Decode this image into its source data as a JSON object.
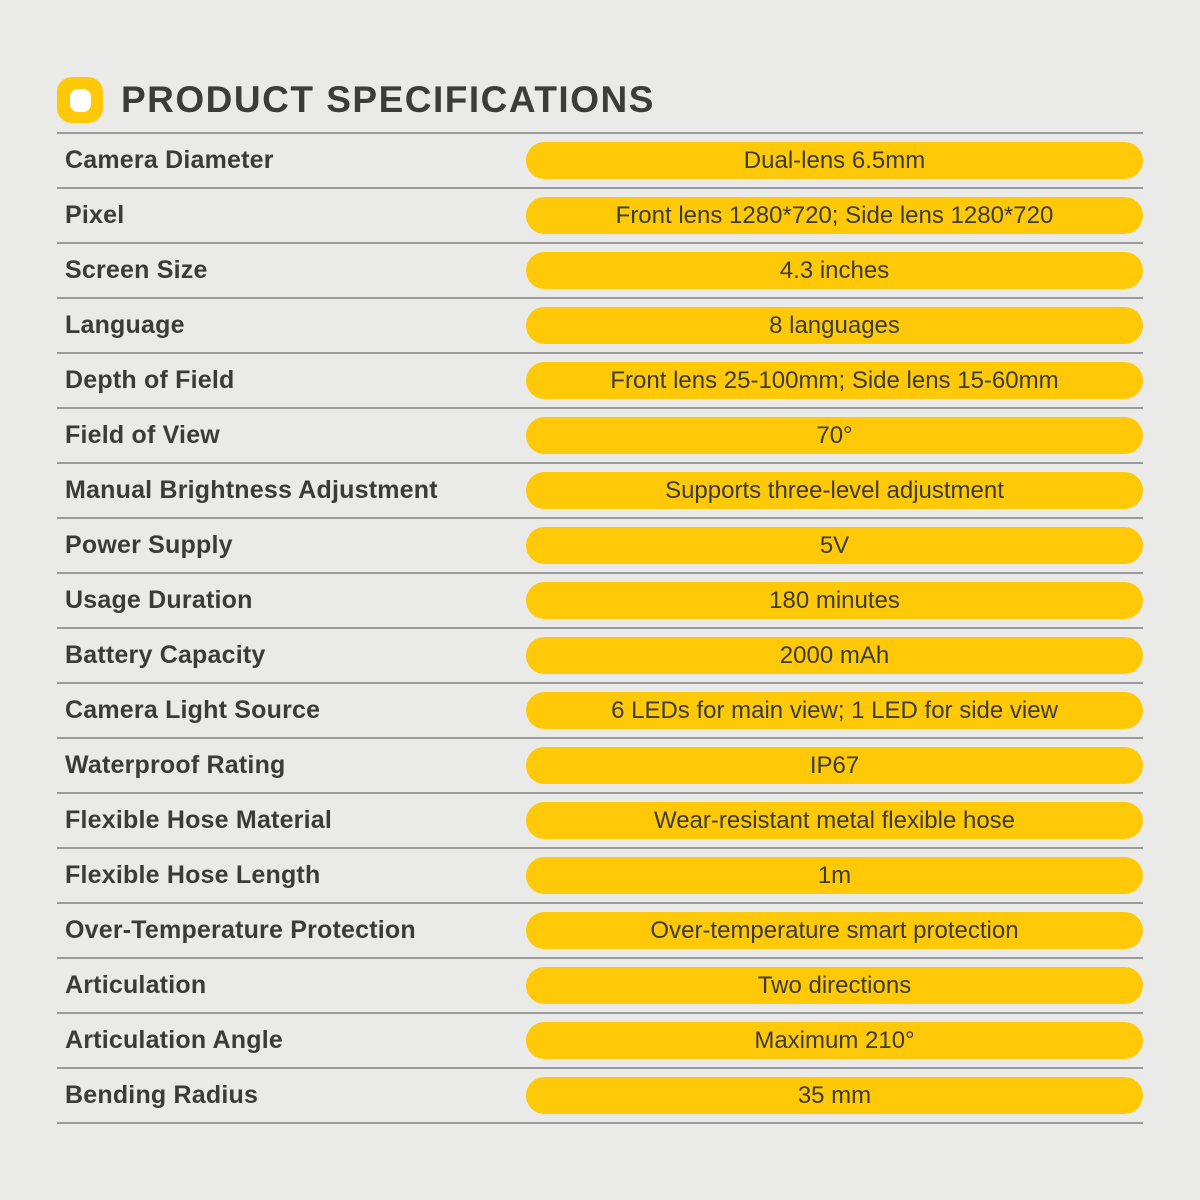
{
  "colors": {
    "background": "#eaeae8",
    "accent": "#ffc907",
    "text": "#3b3b3b",
    "divider": "#9c9c9c"
  },
  "header": {
    "title": "PRODUCT SPECIFICATIONS",
    "icon": "o-badge-icon"
  },
  "spec_table": {
    "rows": [
      {
        "label": "Camera Diameter",
        "value": "Dual-lens 6.5mm"
      },
      {
        "label": "Pixel",
        "value": "Front lens 1280*720; Side lens 1280*720"
      },
      {
        "label": "Screen Size",
        "value": "4.3 inches"
      },
      {
        "label": "Language",
        "value": "8 languages"
      },
      {
        "label": "Depth of Field",
        "value": "Front lens 25-100mm; Side lens 15-60mm"
      },
      {
        "label": "Field of View",
        "value": "70°"
      },
      {
        "label": "Manual Brightness Adjustment",
        "value": "Supports three-level adjustment"
      },
      {
        "label": "Power Supply",
        "value": "5V"
      },
      {
        "label": "Usage Duration",
        "value": "180 minutes"
      },
      {
        "label": "Battery Capacity",
        "value": "2000 mAh"
      },
      {
        "label": "Camera Light Source",
        "value": "6 LEDs for main view; 1 LED for side view"
      },
      {
        "label": "Waterproof Rating",
        "value": "IP67"
      },
      {
        "label": "Flexible Hose Material",
        "value": "Wear-resistant metal flexible hose"
      },
      {
        "label": "Flexible Hose Length",
        "value": "1m"
      },
      {
        "label": "Over-Temperature Protection",
        "value": "Over-temperature smart protection"
      },
      {
        "label": "Articulation",
        "value": "Two directions"
      },
      {
        "label": "Articulation Angle",
        "value": "Maximum 210°"
      },
      {
        "label": "Bending Radius",
        "value": "35 mm"
      }
    ]
  }
}
